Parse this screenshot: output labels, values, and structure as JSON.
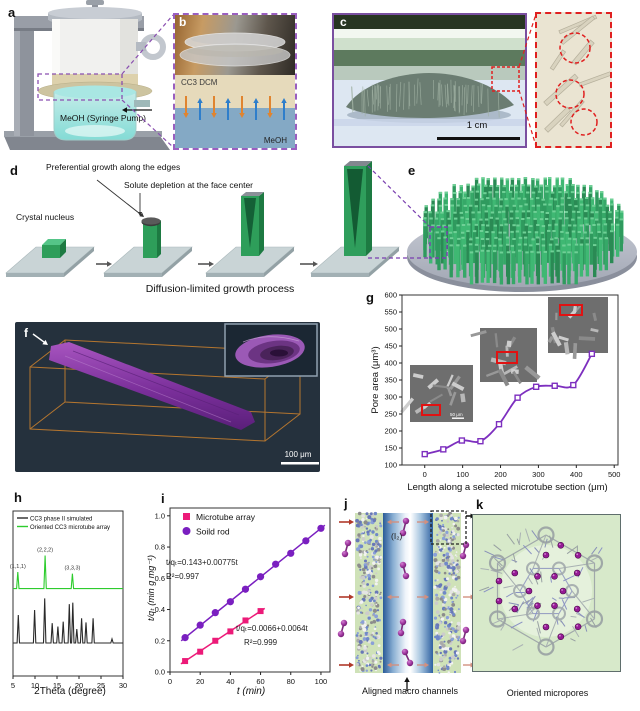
{
  "labels": {
    "a": "a",
    "b": "b",
    "c": "c",
    "d": "d",
    "e": "e",
    "f": "f",
    "g": "g",
    "h": "h",
    "i": "i",
    "j": "j",
    "k": "k"
  },
  "panel_a": {
    "pump_label": "MeOH (Syringe Pump)"
  },
  "panel_b": {
    "solution_label": "CC3 DCM",
    "solvent_label": "MeOH"
  },
  "panel_c": {
    "scale_bar": "1 cm"
  },
  "panel_d": {
    "callout_edges": "Preferential growth along the edges",
    "callout_center": "Solute depletion at the face center",
    "nucleus": "Crystal nucleus",
    "caption": "Diffusion-limited growth process"
  },
  "panel_f": {
    "scale_bar": "100 μm"
  },
  "panel_j": {
    "iodine": "(I₂)",
    "caption": "Aligned macro channels"
  },
  "panel_k": {
    "caption": "Oriented micropores"
  },
  "chart_data": [
    {
      "id": "pore-area-profile",
      "panel": "g",
      "type": "scatter",
      "title": "",
      "xlabel": "Length along a selected microtube section (μm)",
      "ylabel": "Pore area (μm³)",
      "xlim": [
        -60,
        510
      ],
      "ylim": [
        100,
        600
      ],
      "xticks": [
        0,
        100,
        200,
        300,
        400,
        500
      ],
      "yticks": [
        100,
        150,
        200,
        250,
        300,
        350,
        400,
        450,
        500,
        550,
        600
      ],
      "x": [
        0,
        49,
        98,
        147,
        196,
        245,
        294,
        343,
        392,
        441
      ],
      "y": [
        132,
        146,
        172,
        170,
        220,
        298,
        330,
        333,
        335,
        427
      ],
      "line_color": "#7d2fbf",
      "marker": "open-square",
      "grid": false,
      "inset_images": 3,
      "inset_scale_bar": "50 μm"
    },
    {
      "id": "xrd-patterns",
      "panel": "h",
      "type": "line",
      "xlabel": "2Theta (degree)",
      "ylabel": "",
      "xlim": [
        5,
        30
      ],
      "xticks": [
        5,
        10,
        15,
        20,
        25,
        30
      ],
      "legend": [
        "CC3 phase II simulated",
        "Oriented CC3 microtube array"
      ],
      "legend_position": "top-left",
      "peak_labels": [
        "(1,1,1)",
        "(2,2,2)",
        "(3,3,3)"
      ],
      "series": [
        {
          "name": "CC3 phase II simulated",
          "color": "#2a2a2a",
          "baseline": 0.2,
          "peaks_2theta_height": [
            [
              6.2,
              0.17
            ],
            [
              9.9,
              0.2
            ],
            [
              12.2,
              0.27
            ],
            [
              13.9,
              0.12
            ],
            [
              15.2,
              0.1
            ],
            [
              16.4,
              0.13
            ],
            [
              17.8,
              0.235
            ],
            [
              18.6,
              0.245
            ],
            [
              19.5,
              0.085
            ],
            [
              20.6,
              0.15
            ],
            [
              21.6,
              0.125
            ],
            [
              23.2,
              0.15
            ],
            [
              27.5,
              0.025
            ]
          ]
        },
        {
          "name": "Oriented CC3 microtube array",
          "color": "#2ecc2e",
          "baseline": 0.53,
          "peaks_2theta_height": [
            [
              6.1,
              0.1
            ],
            [
              12.3,
              0.2
            ],
            [
              18.5,
              0.09
            ]
          ]
        }
      ]
    },
    {
      "id": "iodine-uptake-kinetics",
      "panel": "i",
      "type": "scatter-line",
      "xlabel": "t (min)",
      "ylabel": "t/qₜ (min g mg⁻¹)",
      "xlim": [
        0,
        106
      ],
      "ylim": [
        0,
        1.05
      ],
      "xticks": [
        0,
        20,
        40,
        60,
        80,
        100
      ],
      "ytick_labels": [
        "0.0",
        "0.2",
        "0.4",
        "0.6",
        "0.8",
        "1.0"
      ],
      "legend": [
        "Microtube array",
        "Soild rod"
      ],
      "series": [
        {
          "name": "Microtube array",
          "color": "#ec1a78",
          "marker": "square",
          "x": [
            10,
            20,
            30,
            40,
            50,
            60
          ],
          "y": [
            0.07,
            0.13,
            0.2,
            0.26,
            0.33,
            0.39
          ]
        },
        {
          "name": "Soild rod",
          "color": "#7a1fc0",
          "marker": "circle",
          "x": [
            10,
            20,
            30,
            40,
            50,
            60,
            70,
            80,
            90,
            100
          ],
          "y": [
            0.22,
            0.3,
            0.38,
            0.45,
            0.53,
            0.61,
            0.69,
            0.76,
            0.84,
            0.92
          ]
        }
      ],
      "annotations": [
        "t/qₜ=0.143+0.00775t",
        "R²=0.997",
        "t/qₜ=0.0066+0.0064t",
        "R²=0.999"
      ]
    }
  ]
}
